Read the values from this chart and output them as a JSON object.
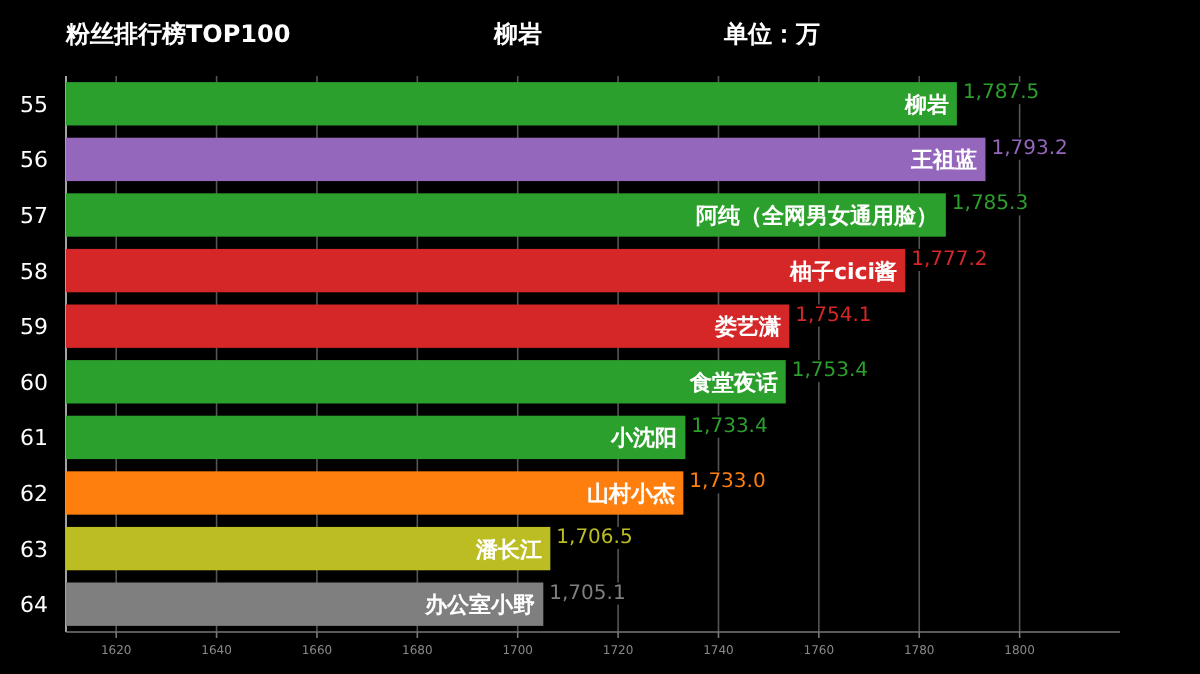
{
  "chart_data": {
    "type": "bar",
    "orientation": "horizontal",
    "title": "粉丝排行榜TOP100",
    "subtitle": "柳岩",
    "categories": [
      "55",
      "56",
      "57",
      "58",
      "59",
      "60",
      "61",
      "62",
      "63",
      "64"
    ],
    "values": [
      1787.5,
      1793.2,
      1785.3,
      1777.2,
      1754.1,
      1753.4,
      1733.4,
      1733.0,
      1706.5,
      1705.1
    ],
    "value_labels": [
      "1,787.5",
      "1,793.2",
      "1,785.3",
      "1,777.2",
      "1,754.1",
      "1,753.4",
      "1,733.4",
      "1,733.0",
      "1,706.5",
      "1,705.1"
    ],
    "colors": [
      "#2ca02c",
      "#9467bd",
      "#2ca02c",
      "#d62728",
      "#d62728",
      "#2ca02c",
      "#2ca02c",
      "#ff7f0e",
      "#bcbd22",
      "#7f7f7f"
    ],
    "xlim": [
      1610,
      1820
    ],
    "xticks": [
      1620,
      1640,
      1660,
      1680,
      1700,
      1720,
      1740,
      1760,
      1780,
      1800
    ],
    "grid": "x",
    "annotations": [
      "单位：万",
      {
        "text": "柳岩",
        "x": 1787.5,
        "y": "55"
      },
      {
        "text": "王祖蓝",
        "x": 1793.2,
        "y": "56"
      },
      {
        "text": "阿纯（全网男女通用脸）",
        "x": 1785.3,
        "y": "57"
      },
      {
        "text": "柚子cici酱",
        "x": 1777.2,
        "y": "58"
      },
      {
        "text": "娄艺潇",
        "x": 1754.1,
        "y": "59"
      },
      {
        "text": "食堂夜话",
        "x": 1753.4,
        "y": "60"
      },
      {
        "text": "小沈阳",
        "x": 1733.4,
        "y": "61"
      },
      {
        "text": "山村小杰",
        "x": 1733.0,
        "y": "62"
      },
      {
        "text": "潘长江",
        "x": 1706.5,
        "y": "63"
      },
      {
        "text": "办公室小野",
        "x": 1705.1,
        "y": "64"
      }
    ]
  }
}
